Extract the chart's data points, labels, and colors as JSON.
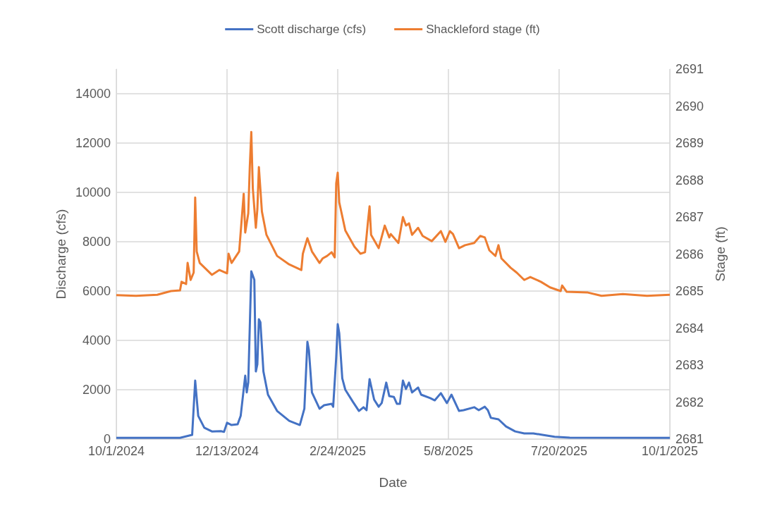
{
  "chart_data": {
    "type": "line",
    "xlabel": "Date",
    "ylabel": "Discharge (cfs)",
    "y2label": "Stage (ft)",
    "legend": "top",
    "grid": true,
    "marker": "none",
    "line_style": "solid",
    "xlim": [
      "2024-10-01",
      "2025-10-01"
    ],
    "xticks": [
      {
        "value": "2024-10-01",
        "label": "10/1/2024"
      },
      {
        "value": "2024-12-13",
        "label": "12/13/2024"
      },
      {
        "value": "2025-02-24",
        "label": "2/24/2025"
      },
      {
        "value": "2025-05-08",
        "label": "5/8/2025"
      },
      {
        "value": "2025-07-20",
        "label": "7/20/2025"
      },
      {
        "value": "2025-10-01",
        "label": "10/1/2025"
      }
    ],
    "ylim": [
      0,
      15000
    ],
    "yticks": [
      0,
      2000,
      4000,
      6000,
      8000,
      10000,
      12000,
      14000
    ],
    "y2lim": [
      2681,
      2691
    ],
    "y2ticks": [
      2681,
      2682,
      2683,
      2684,
      2685,
      2686,
      2687,
      2688,
      2689,
      2690,
      2691
    ],
    "series": [
      {
        "name": "Scott discharge (cfs)",
        "color": "#4472c4",
        "x": [
          "2024-10-01",
          "2024-11-12",
          "2024-11-20",
          "2024-11-22",
          "2024-11-24",
          "2024-11-28",
          "2024-12-03",
          "2024-12-09",
          "2024-12-11",
          "2024-12-13",
          "2024-12-16",
          "2024-12-20",
          "2024-12-22",
          "2024-12-25",
          "2024-12-26",
          "2024-12-27",
          "2024-12-29",
          "2024-12-31",
          "2025-01-01",
          "2025-01-02",
          "2025-01-03",
          "2025-01-04",
          "2025-01-06",
          "2025-01-09",
          "2025-01-15",
          "2025-01-23",
          "2025-01-30",
          "2025-02-02",
          "2025-02-04",
          "2025-02-05",
          "2025-02-07",
          "2025-02-12",
          "2025-02-15",
          "2025-02-20",
          "2025-02-21",
          "2025-02-23",
          "2025-02-24",
          "2025-02-25",
          "2025-02-27",
          "2025-03-01",
          "2025-03-06",
          "2025-03-10",
          "2025-03-13",
          "2025-03-15",
          "2025-03-17",
          "2025-03-20",
          "2025-03-23",
          "2025-03-25",
          "2025-03-28",
          "2025-03-30",
          "2025-04-02",
          "2025-04-04",
          "2025-04-06",
          "2025-04-08",
          "2025-04-10",
          "2025-04-12",
          "2025-04-14",
          "2025-04-18",
          "2025-04-20",
          "2025-04-26",
          "2025-04-29",
          "2025-05-03",
          "2025-05-07",
          "2025-05-10",
          "2025-05-15",
          "2025-05-18",
          "2025-05-25",
          "2025-05-28",
          "2025-06-01",
          "2025-06-03",
          "2025-06-05",
          "2025-06-10",
          "2025-06-15",
          "2025-06-21",
          "2025-06-27",
          "2025-07-03",
          "2025-07-09",
          "2025-07-17",
          "2025-07-27",
          "2025-10-01"
        ],
        "values": [
          50,
          50,
          170,
          2370,
          940,
          460,
          310,
          320,
          290,
          660,
          570,
          600,
          940,
          2570,
          1890,
          2290,
          6800,
          6460,
          2740,
          3030,
          4860,
          4740,
          2740,
          1800,
          1140,
          740,
          570,
          1230,
          3940,
          3600,
          1890,
          1230,
          1370,
          1430,
          1310,
          3310,
          4660,
          4290,
          2460,
          2000,
          1510,
          1140,
          1290,
          1170,
          2430,
          1600,
          1310,
          1460,
          2290,
          1740,
          1710,
          1430,
          1430,
          2370,
          2030,
          2290,
          1890,
          2090,
          1800,
          1660,
          1570,
          1860,
          1460,
          1800,
          1140,
          1170,
          1290,
          1170,
          1310,
          1170,
          860,
          800,
          510,
          310,
          230,
          230,
          170,
          90,
          60,
          50
        ]
      },
      {
        "name": "Shackleford stage (ft)",
        "color": "#ed7d31",
        "axis": "y2",
        "x": [
          "2024-10-01",
          "2024-10-14",
          "2024-10-28",
          "2024-11-06",
          "2024-11-12",
          "2024-11-13",
          "2024-11-16",
          "2024-11-17",
          "2024-11-19",
          "2024-11-21",
          "2024-11-22",
          "2024-11-23",
          "2024-11-25",
          "2024-12-03",
          "2024-12-08",
          "2024-12-13",
          "2024-12-14",
          "2024-12-16",
          "2024-12-21",
          "2024-12-24",
          "2024-12-25",
          "2024-12-27",
          "2024-12-28",
          "2024-12-29",
          "2024-12-30",
          "2025-01-01",
          "2025-01-02",
          "2025-01-03",
          "2025-01-05",
          "2025-01-08",
          "2025-01-15",
          "2025-01-23",
          "2025-01-31",
          "2025-02-01",
          "2025-02-04",
          "2025-02-07",
          "2025-02-12",
          "2025-02-14",
          "2025-02-17",
          "2025-02-20",
          "2025-02-22",
          "2025-02-23",
          "2025-02-24",
          "2025-02-25",
          "2025-03-01",
          "2025-03-07",
          "2025-03-11",
          "2025-03-14",
          "2025-03-16",
          "2025-03-17",
          "2025-03-18",
          "2025-03-23",
          "2025-03-27",
          "2025-03-30",
          "2025-03-31",
          "2025-04-05",
          "2025-04-08",
          "2025-04-10",
          "2025-04-12",
          "2025-04-14",
          "2025-04-18",
          "2025-04-21",
          "2025-04-27",
          "2025-05-03",
          "2025-05-06",
          "2025-05-09",
          "2025-05-11",
          "2025-05-15",
          "2025-05-19",
          "2025-05-25",
          "2025-05-29",
          "2025-06-01",
          "2025-06-04",
          "2025-06-08",
          "2025-06-10",
          "2025-06-12",
          "2025-06-18",
          "2025-06-22",
          "2025-06-27",
          "2025-07-01",
          "2025-07-08",
          "2025-07-14",
          "2025-07-21",
          "2025-07-22",
          "2025-07-25",
          "2025-08-08",
          "2025-08-17",
          "2025-08-31",
          "2025-09-16",
          "2025-10-01"
        ],
        "values": [
          2684.89,
          2684.87,
          2684.9,
          2685.0,
          2685.02,
          2685.25,
          2685.19,
          2685.76,
          2685.3,
          2685.5,
          2687.53,
          2686.07,
          2685.76,
          2685.44,
          2685.57,
          2685.48,
          2686.01,
          2685.76,
          2686.07,
          2687.63,
          2686.58,
          2687.1,
          2688.35,
          2689.3,
          2687.78,
          2686.71,
          2687.21,
          2688.35,
          2687.15,
          2686.52,
          2685.95,
          2685.72,
          2685.57,
          2686.01,
          2686.43,
          2686.07,
          2685.76,
          2685.88,
          2685.95,
          2686.05,
          2685.91,
          2687.91,
          2688.2,
          2687.4,
          2686.64,
          2686.2,
          2686.01,
          2686.05,
          2686.9,
          2687.29,
          2686.52,
          2686.16,
          2686.77,
          2686.45,
          2686.54,
          2686.3,
          2687.0,
          2686.77,
          2686.83,
          2686.52,
          2686.71,
          2686.49,
          2686.35,
          2686.62,
          2686.33,
          2686.62,
          2686.54,
          2686.16,
          2686.24,
          2686.3,
          2686.49,
          2686.45,
          2686.1,
          2685.95,
          2686.24,
          2685.88,
          2685.63,
          2685.5,
          2685.3,
          2685.38,
          2685.25,
          2685.1,
          2685.0,
          2685.15,
          2684.98,
          2684.96,
          2684.87,
          2684.92,
          2684.87,
          2684.9
        ]
      }
    ]
  }
}
